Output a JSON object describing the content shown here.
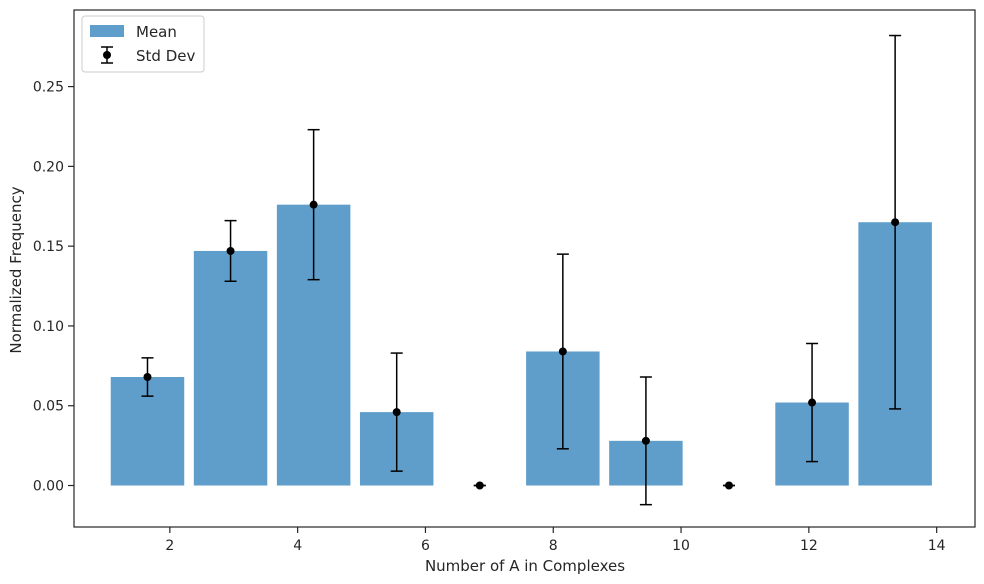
{
  "chart_data": {
    "type": "bar",
    "xlabel": "Number of A in Complexes",
    "ylabel": "Normalized Frequency",
    "xlim": [
      0.5,
      14.6
    ],
    "ylim": [
      -0.026,
      0.298
    ],
    "xticks": [
      2,
      4,
      6,
      8,
      10,
      12,
      14
    ],
    "yticks": [
      0.0,
      0.05,
      0.1,
      0.15,
      0.2,
      0.25
    ],
    "xtick_labels": [
      "2",
      "4",
      "6",
      "8",
      "10",
      "12",
      "14"
    ],
    "ytick_labels": [
      "0.00",
      "0.05",
      "0.10",
      "0.15",
      "0.20",
      "0.25"
    ],
    "bar_width": 1.15,
    "bar_color": "#5f9ecb",
    "errorbar_color": "#000000",
    "legend_position": "upper-left",
    "legend": {
      "mean_label": "Mean",
      "std_label": "Std Dev"
    },
    "series": [
      {
        "name": "Mean",
        "x": [
          1.65,
          2.95,
          4.25,
          5.55,
          6.85,
          8.15,
          9.45,
          10.75,
          12.05,
          13.35
        ],
        "values": [
          0.068,
          0.147,
          0.176,
          0.046,
          0.0,
          0.084,
          0.028,
          0.0,
          0.052,
          0.165
        ]
      },
      {
        "name": "Std Dev",
        "x": [
          1.65,
          2.95,
          4.25,
          5.55,
          6.85,
          8.15,
          9.45,
          10.75,
          12.05,
          13.35
        ],
        "std": [
          0.012,
          0.019,
          0.047,
          0.037,
          0.0,
          0.061,
          0.04,
          0.0,
          0.037,
          0.117
        ]
      }
    ]
  }
}
